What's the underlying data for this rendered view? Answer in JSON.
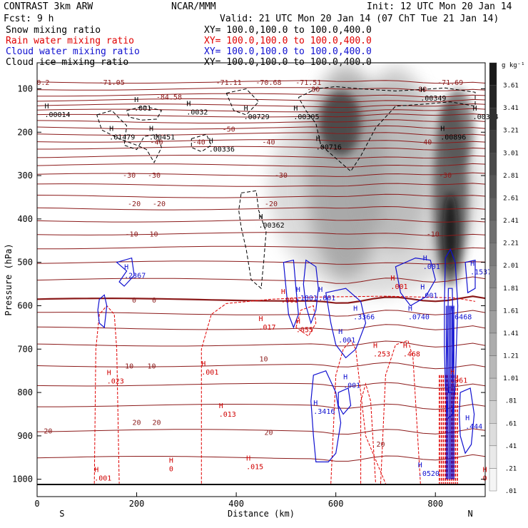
{
  "header": {
    "left1": "CONTRAST  3km ARW",
    "center1": "NCAR/MMM",
    "init": "Init: 12 UTC Mon 20 Jan 14",
    "left2": "Fcst:    9 h",
    "valid": "Valid: 21 UTC Mon 20 Jan 14 (07 ChT Tue 21 Jan 14)",
    "fields": [
      {
        "name": "Snow mixing ratio",
        "xy": "XY= 100.0,100.0 to 100.0,400.0",
        "color": "#000000"
      },
      {
        "name": "Rain water mixing ratio",
        "xy": "XY= 100.0,100.0 to 100.0,400.0",
        "color": "#e00000"
      },
      {
        "name": "Cloud water mixing ratio",
        "xy": "XY= 100.0,100.0 to 100.0,400.0",
        "color": "#1010d0"
      },
      {
        "name": "Cloud ice mixing ratio",
        "xy": "XY= 100.0,100.0 to 100.0,400.0",
        "color": "#000000"
      }
    ]
  },
  "chart_data": {
    "type": "heatmap",
    "xlabel": "Distance (km)",
    "ylabel": "Pressure (hPa)",
    "xlim": [
      0,
      900
    ],
    "ylim": [
      1040,
      40
    ],
    "x_ticks": [
      0,
      200,
      400,
      600,
      800
    ],
    "y_ticks": [
      100,
      200,
      300,
      400,
      500,
      600,
      700,
      800,
      900,
      1000
    ],
    "x_end_labels": {
      "left": "S",
      "right": "N"
    },
    "colorbar": {
      "unit": "g kg⁻¹",
      "levels": [
        ".01",
        ".21",
        ".41",
        ".61",
        ".81",
        "1.01",
        "1.21",
        "1.41",
        "1.61",
        "1.81",
        "2.01",
        "2.21",
        "2.41",
        "2.61",
        "2.81",
        "3.01",
        "3.21",
        "3.41",
        "3.61"
      ]
    },
    "temperature_labels": [
      {
        "value": "-71.05",
        "x": 150,
        "p": 84
      },
      {
        "value": "-71.11",
        "x": 385,
        "p": 84
      },
      {
        "value": "-70.68",
        "x": 465,
        "p": 84
      },
      {
        "value": "-71.51",
        "x": 545,
        "p": 84
      },
      {
        "value": "-71.69",
        "x": 830,
        "p": 84
      },
      {
        "value": "-80",
        "x": 555,
        "p": 100
      },
      {
        "value": "-80",
        "x": 770,
        "p": 100
      },
      {
        "value": "-84.58",
        "x": 265,
        "p": 118
      },
      {
        "value": "-50",
        "x": 385,
        "p": 192
      },
      {
        "value": "-40",
        "x": 240,
        "p": 222
      },
      {
        "value": "-40",
        "x": 325,
        "p": 222
      },
      {
        "value": "-40",
        "x": 465,
        "p": 222
      },
      {
        "value": "-40",
        "x": 780,
        "p": 222
      },
      {
        "value": "-30",
        "x": 185,
        "p": 298
      },
      {
        "value": "-30",
        "x": 235,
        "p": 298
      },
      {
        "value": "-30",
        "x": 490,
        "p": 298
      },
      {
        "value": "-30",
        "x": 820,
        "p": 298
      },
      {
        "value": "-20",
        "x": 195,
        "p": 364
      },
      {
        "value": "-20",
        "x": 245,
        "p": 364
      },
      {
        "value": "-20",
        "x": 470,
        "p": 364
      },
      {
        "value": "-10",
        "x": 190,
        "p": 434
      },
      {
        "value": "-10",
        "x": 230,
        "p": 434
      },
      {
        "value": "-10",
        "x": 795,
        "p": 434
      },
      {
        "value": "0",
        "x": 195,
        "p": 586
      },
      {
        "value": "0",
        "x": 235,
        "p": 586
      },
      {
        "value": "10",
        "x": 185,
        "p": 738
      },
      {
        "value": "10",
        "x": 230,
        "p": 738
      },
      {
        "value": "10",
        "x": 455,
        "p": 722
      },
      {
        "value": "20",
        "x": 22,
        "p": 888
      },
      {
        "value": "20",
        "x": 200,
        "p": 868
      },
      {
        "value": "20",
        "x": 240,
        "p": 868
      },
      {
        "value": "20",
        "x": 465,
        "p": 891
      },
      {
        "value": "20",
        "x": 690,
        "p": 918
      },
      {
        "value": "0.2",
        "x": 12,
        "p": 84
      }
    ],
    "snow_ice_labels": [
      {
        "value": ".00014",
        "x": 15,
        "p": 165
      },
      {
        "value": ".001",
        "x": 195,
        "p": 150
      },
      {
        "value": ".0032",
        "x": 300,
        "p": 159
      },
      {
        "value": ".00729",
        "x": 415,
        "p": 170
      },
      {
        "value": ".00305",
        "x": 515,
        "p": 170
      },
      {
        "value": ".00349",
        "x": 770,
        "p": 127
      },
      {
        "value": ".00384",
        "x": 875,
        "p": 170
      },
      {
        "value": ".01479",
        "x": 145,
        "p": 217
      },
      {
        "value": ".00451",
        "x": 225,
        "p": 217
      },
      {
        "value": ".00336",
        "x": 345,
        "p": 245
      },
      {
        "value": ".00716",
        "x": 560,
        "p": 240
      },
      {
        "value": ".00896",
        "x": 810,
        "p": 217
      },
      {
        "value": ".00362",
        "x": 445,
        "p": 420
      }
    ],
    "rain_labels": [
      {
        "value": ".001",
        "x": 490,
        "p": 593
      },
      {
        "value": ".001",
        "x": 710,
        "p": 561
      },
      {
        "value": ".017",
        "x": 445,
        "p": 655
      },
      {
        "value": ".055",
        "x": 520,
        "p": 661
      },
      {
        "value": ".253",
        "x": 675,
        "p": 717
      },
      {
        "value": ".468",
        "x": 735,
        "p": 717
      },
      {
        "value": ".023",
        "x": 140,
        "p": 779
      },
      {
        "value": ".001",
        "x": 330,
        "p": 759
      },
      {
        "value": ".013",
        "x": 365,
        "p": 856
      },
      {
        "value": "0",
        "x": 265,
        "p": 982
      },
      {
        "value": ".015",
        "x": 420,
        "p": 977
      },
      {
        "value": ".001",
        "x": 115,
        "p": 1003
      },
      {
        "value": ".961",
        "x": 830,
        "p": 778
      },
      {
        "value": "0",
        "x": 895,
        "p": 1003
      }
    ],
    "cloud_water_labels": [
      {
        "value": ".2367",
        "x": 175,
        "p": 536
      },
      {
        "value": ".1801",
        "x": 520,
        "p": 588
      },
      {
        "value": ".001",
        "x": 565,
        "p": 588
      },
      {
        "value": ".3366",
        "x": 635,
        "p": 631
      },
      {
        "value": ".0740",
        "x": 745,
        "p": 631
      },
      {
        "value": ".6468",
        "x": 830,
        "p": 631
      },
      {
        "value": ".001",
        "x": 605,
        "p": 685
      },
      {
        "value": ".001",
        "x": 615,
        "p": 789
      },
      {
        "value": ".3416",
        "x": 555,
        "p": 849
      },
      {
        "value": ".001",
        "x": 775,
        "p": 515
      },
      {
        "value": ".001",
        "x": 770,
        "p": 582
      },
      {
        "value": ".1537",
        "x": 870,
        "p": 528
      },
      {
        "value": ".444",
        "x": 860,
        "p": 884
      },
      {
        "value": ".0520",
        "x": 765,
        "p": 992
      }
    ],
    "ice_maxima": [
      {
        "x": 610,
        "p": 230,
        "value": 3.2
      },
      {
        "x": 830,
        "p": 440,
        "value": 3.6
      },
      {
        "x": 700,
        "p": 220,
        "value": 1.3
      },
      {
        "x": 840,
        "p": 180,
        "value": 2.2
      }
    ]
  }
}
